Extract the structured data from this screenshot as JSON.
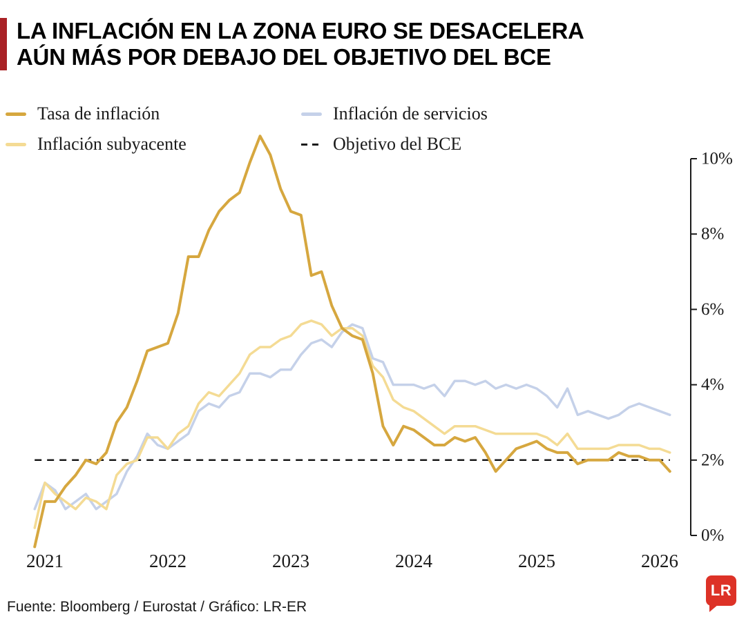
{
  "header": {
    "line1": "LA INFLACIÓN EN LA ZONA EURO SE DESACELERA",
    "line2": "AÚN MÁS POR DEBAJO DEL OBJETIVO DEL BCE"
  },
  "footer": {
    "source": "Fuente: Bloomberg / Eurostat / Gráfico: LR-ER",
    "logo_text": "LR"
  },
  "colors": {
    "accent_bar": "#A92226",
    "logo_red": "#DD3227",
    "axis": "#1a1a1a"
  },
  "chart_data": {
    "type": "line",
    "x_start": 2020.9167,
    "months_per_point": 1,
    "x_ticks": [
      2021,
      2022,
      2023,
      2024,
      2025,
      2026
    ],
    "y_ticks": [
      0,
      2,
      4,
      6,
      8,
      10
    ],
    "y_tick_suffix": "%",
    "ylim": [
      0,
      10
    ],
    "xlim": [
      2020.9,
      2026.1
    ],
    "grid": false,
    "legend_position": "top",
    "series": [
      {
        "name": "Tasa de inflación",
        "color": "#D6A73F",
        "width": 4,
        "values": [
          -0.3,
          0.9,
          0.9,
          1.3,
          1.6,
          2.0,
          1.9,
          2.2,
          3.0,
          3.4,
          4.1,
          4.9,
          5.0,
          5.1,
          5.9,
          7.4,
          7.4,
          8.1,
          8.6,
          8.9,
          9.1,
          9.9,
          10.6,
          10.1,
          9.2,
          8.6,
          8.5,
          6.9,
          7.0,
          6.1,
          5.5,
          5.3,
          5.2,
          4.3,
          2.9,
          2.4,
          2.9,
          2.8,
          2.6,
          2.4,
          2.4,
          2.6,
          2.5,
          2.6,
          2.2,
          1.7,
          2.0,
          2.3,
          2.4,
          2.5,
          2.3,
          2.2,
          2.2,
          1.9,
          2.0,
          2.0,
          2.0,
          2.2,
          2.1,
          2.1,
          2.0,
          2.0,
          1.7
        ]
      },
      {
        "name": "Inflación subyacente",
        "color": "#F4DB94",
        "width": 3.5,
        "values": [
          0.2,
          1.4,
          1.1,
          0.9,
          0.7,
          1.0,
          0.9,
          0.7,
          1.6,
          1.9,
          2.0,
          2.6,
          2.6,
          2.3,
          2.7,
          2.9,
          3.5,
          3.8,
          3.7,
          4.0,
          4.3,
          4.8,
          5.0,
          5.0,
          5.2,
          5.3,
          5.6,
          5.7,
          5.6,
          5.3,
          5.5,
          5.5,
          5.3,
          4.5,
          4.2,
          3.6,
          3.4,
          3.3,
          3.1,
          2.9,
          2.7,
          2.9,
          2.9,
          2.9,
          2.8,
          2.7,
          2.7,
          2.7,
          2.7,
          2.7,
          2.6,
          2.4,
          2.7,
          2.3,
          2.3,
          2.3,
          2.3,
          2.4,
          2.4,
          2.4,
          2.3,
          2.3,
          2.2
        ]
      },
      {
        "name": "Inflación de servicios",
        "color": "#C5D1E9",
        "width": 3.5,
        "values": [
          0.7,
          1.4,
          1.2,
          0.7,
          0.9,
          1.1,
          0.7,
          0.9,
          1.1,
          1.7,
          2.1,
          2.7,
          2.4,
          2.3,
          2.5,
          2.7,
          3.3,
          3.5,
          3.4,
          3.7,
          3.8,
          4.3,
          4.3,
          4.2,
          4.4,
          4.4,
          4.8,
          5.1,
          5.2,
          5.0,
          5.4,
          5.6,
          5.5,
          4.7,
          4.6,
          4.0,
          4.0,
          4.0,
          3.9,
          4.0,
          3.7,
          4.1,
          4.1,
          4.0,
          4.1,
          3.9,
          4.0,
          3.9,
          4.0,
          3.9,
          3.7,
          3.4,
          3.9,
          3.2,
          3.3,
          3.2,
          3.1,
          3.2,
          3.4,
          3.5,
          3.4,
          3.3,
          3.2
        ]
      }
    ],
    "target": {
      "name": "Objetivo del BCE",
      "value": 2,
      "color": "#1a1a1a",
      "style": "dashed"
    }
  }
}
